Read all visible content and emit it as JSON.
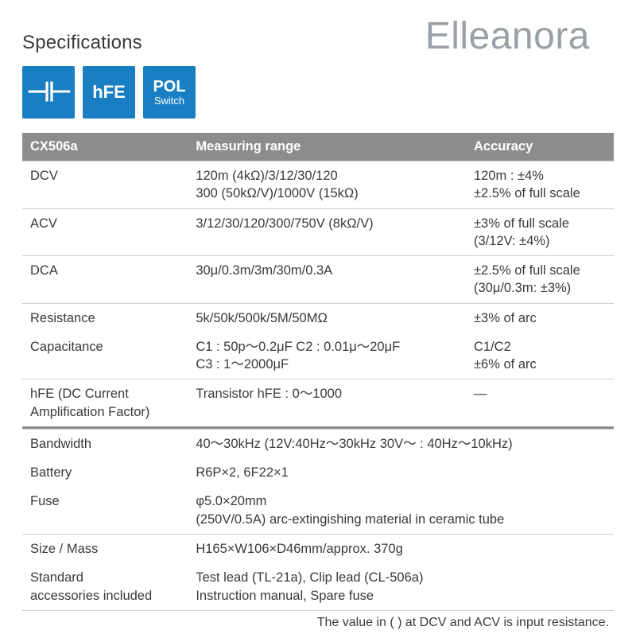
{
  "title": "Specifications",
  "watermark": "Elleanora",
  "icons": {
    "capacitor_glyph": "⊣⊢",
    "hfe_label": "hFE",
    "pol_top": "POL",
    "pol_bottom": "Switch"
  },
  "colors": {
    "icon_bg": "#1a7fc2",
    "header_bg": "#8c8c8c",
    "border": "#cfcfcf",
    "text": "#3a3a3a",
    "watermark": "#9aa0a6"
  },
  "table": {
    "headers": [
      "CX506a",
      "Measuring range",
      "Accuracy"
    ],
    "rows": [
      {
        "c0": "DCV",
        "c1": "120m (4kΩ)/3/12/30/120\n300 (50kΩ/V)/1000V (15kΩ)",
        "c2": "120m : ±4%\n±2.5% of full scale"
      },
      {
        "c0": "ACV",
        "c1": "3/12/30/120/300/750V (8kΩ/V)",
        "c2": "±3% of full scale\n(3/12V: ±4%)"
      },
      {
        "c0": "DCA",
        "c1": "30μ/0.3m/3m/30m/0.3A",
        "c2": "±2.5% of full scale\n(30μ/0.3m: ±3%)"
      },
      {
        "c0": "Resistance",
        "c1": "5k/50k/500k/5M/50MΩ",
        "c2": "±3% of arc"
      },
      {
        "c0": "Capacitance",
        "c1": "C1 : 50p～0.2μF   C2 : 0.01μ～20μF\nC3 : 1～2000μF",
        "c2": "C1/C2\n±6% of arc"
      },
      {
        "c0": "hFE (DC Current\nAmplification Factor)",
        "c1": "Transistor hFE : 0～1000",
        "c2": "—"
      }
    ],
    "rows2": [
      {
        "c0": "Bandwidth",
        "c1": "40～30kHz (12V:40Hz～30kHz 30V～ : 40Hz～10kHz)"
      },
      {
        "c0": "Battery",
        "c1": "R6P×2, 6F22×1"
      },
      {
        "c0": "Fuse",
        "c1": "φ5.0×20mm\n(250V/0.5A) arc-extingishing material in ceramic tube"
      },
      {
        "c0": "Size / Mass",
        "c1": "H165×W106×D46mm/approx. 370g"
      },
      {
        "c0": "Standard\naccessories included",
        "c1": "Test lead (TL-21a), Clip lead (CL-506a)\nInstruction manual, Spare fuse"
      }
    ]
  },
  "foot_note": "The value in (   ) at DCV and ACV is input resistance."
}
